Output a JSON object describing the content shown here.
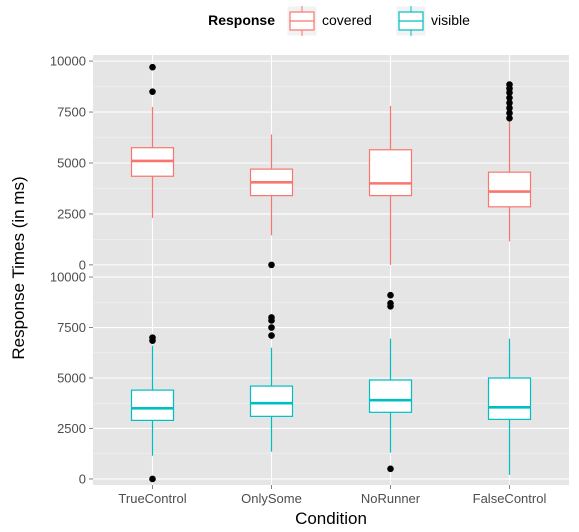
{
  "chart_data": {
    "type": "boxplot",
    "xlabel": "Condition",
    "ylabel": "Response Times (in ms)",
    "categories": [
      "TrueControl",
      "OnlySome",
      "NoRunner",
      "FalseControl"
    ],
    "legend": {
      "title": "Response",
      "position": "top",
      "entries": [
        {
          "name": "covered",
          "color": "#F8766D"
        },
        {
          "name": "visible",
          "color": "#00BFC4"
        }
      ]
    },
    "ylim": [
      -300,
      10300
    ],
    "yticks": [
      0,
      2500,
      5000,
      7500,
      10000
    ],
    "yticklabels": [
      "0",
      "2500",
      "5000",
      "7500",
      "10000"
    ],
    "grid": true,
    "panel_background": "#E5E5E5",
    "panels": [
      {
        "name": "covered",
        "color": "#F8766D",
        "boxes": [
          {
            "category": "TrueControl",
            "whisker_low": 2300,
            "q1": 4350,
            "median": 5100,
            "q3": 5750,
            "whisker_high": 7750,
            "outliers": [
              8500,
              9700
            ]
          },
          {
            "category": "OnlySome",
            "whisker_low": 1450,
            "q1": 3400,
            "median": 4050,
            "q3": 4700,
            "whisker_high": 6400,
            "outliers": [
              0
            ]
          },
          {
            "category": "NoRunner",
            "whisker_low": 0,
            "q1": 3400,
            "median": 4000,
            "q3": 5650,
            "whisker_high": 7800,
            "outliers": []
          },
          {
            "category": "FalseControl",
            "whisker_low": 1150,
            "q1": 2850,
            "median": 3600,
            "q3": 4550,
            "whisker_high": 7050,
            "outliers": [
              7200,
              7450,
              7700,
              7950,
              8200,
              8450,
              8650,
              8850
            ]
          }
        ]
      },
      {
        "name": "visible",
        "color": "#00BFC4",
        "boxes": [
          {
            "category": "TrueControl",
            "whisker_low": 1150,
            "q1": 2900,
            "median": 3500,
            "q3": 4400,
            "whisker_high": 6600,
            "outliers": [
              0,
              6850,
              7000
            ]
          },
          {
            "category": "OnlySome",
            "whisker_low": 1350,
            "q1": 3100,
            "median": 3750,
            "q3": 4600,
            "whisker_high": 6500,
            "outliers": [
              7100,
              7500,
              7850,
              8000
            ]
          },
          {
            "category": "NoRunner",
            "whisker_low": 1300,
            "q1": 3300,
            "median": 3900,
            "q3": 4900,
            "whisker_high": 6950,
            "outliers": [
              500,
              8550,
              8700,
              9100
            ]
          },
          {
            "category": "FalseControl",
            "whisker_low": 200,
            "q1": 2950,
            "median": 3550,
            "q3": 5000,
            "whisker_high": 6950,
            "outliers": []
          }
        ]
      }
    ]
  }
}
